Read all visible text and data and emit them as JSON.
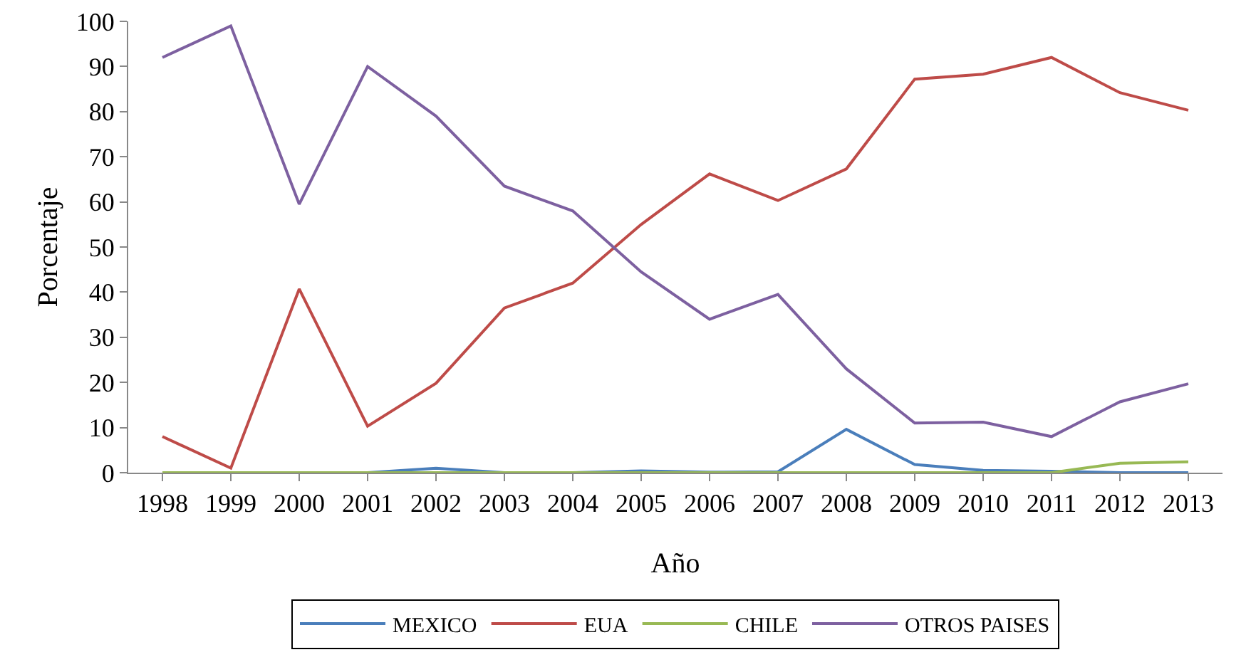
{
  "chart_data": {
    "type": "line",
    "xlabel": "Año",
    "ylabel": "Porcentaje",
    "categories": [
      "1998",
      "1999",
      "2000",
      "2001",
      "2002",
      "2003",
      "2004",
      "2005",
      "2006",
      "2007",
      "2008",
      "2009",
      "2010",
      "2011",
      "2012",
      "2013"
    ],
    "series": [
      {
        "name": "MEXICO",
        "color": "#4a7ebb",
        "values": [
          null,
          null,
          0,
          0,
          1,
          0,
          0,
          0.4,
          0.1,
          0.2,
          9.6,
          1.8,
          0.5,
          0.3,
          0,
          0
        ]
      },
      {
        "name": "EUA",
        "color": "#be4b48",
        "values": [
          8,
          1,
          40.7,
          10.3,
          19.8,
          36.5,
          42,
          55,
          66.2,
          60.3,
          67.3,
          87.2,
          88.3,
          92,
          84.2,
          80.3
        ]
      },
      {
        "name": "CHILE",
        "color": "#98b954",
        "values": [
          0,
          0,
          0,
          0,
          0,
          0,
          0,
          0,
          0,
          0,
          0,
          0,
          0,
          0,
          2.1,
          2.4
        ]
      },
      {
        "name": "OTROS PAISES",
        "color": "#7d60a0",
        "values": [
          92,
          99,
          59.5,
          90,
          79,
          63.5,
          58,
          44.5,
          34,
          39.5,
          23,
          11,
          11.2,
          8,
          15.7,
          19.7
        ]
      }
    ],
    "ylim": [
      0,
      100
    ],
    "yticks": [
      0,
      10,
      20,
      30,
      40,
      50,
      60,
      70,
      80,
      90,
      100
    ],
    "grid": false,
    "legend": "bottom",
    "marker": "none",
    "line_style": "solid"
  }
}
